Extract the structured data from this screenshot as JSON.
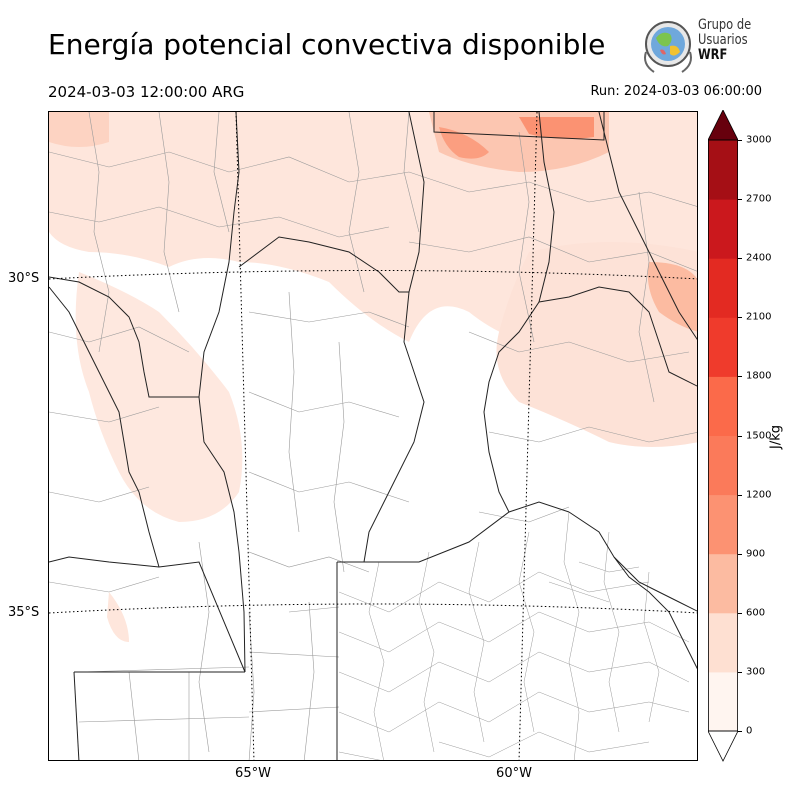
{
  "header": {
    "title": "Energía potencial convectiva disponible",
    "valid_time": "2024-03-03 12:00:00 ARG",
    "run_time": "Run: 2024-03-03 06:00:00"
  },
  "logo": {
    "line1": "Grupo de",
    "line2": "Usuarios",
    "line3": "WRF"
  },
  "map": {
    "lat_labels": [
      "30°S",
      "35°S"
    ],
    "lon_labels": [
      "65°W",
      "60°W"
    ]
  },
  "colorbar": {
    "units": "J/kg",
    "ticks": [
      "0",
      "300",
      "600",
      "900",
      "1200",
      "1500",
      "1800",
      "2100",
      "2400",
      "2700",
      "3000"
    ],
    "colors": [
      "#fff5f0",
      "#fee0d2",
      "#fcbba1",
      "#fc9272",
      "#fb7a5a",
      "#fb6a4a",
      "#ef3b2c",
      "#e32a22",
      "#cb181d",
      "#a50f15",
      "#67000d"
    ],
    "extend": "both"
  }
}
